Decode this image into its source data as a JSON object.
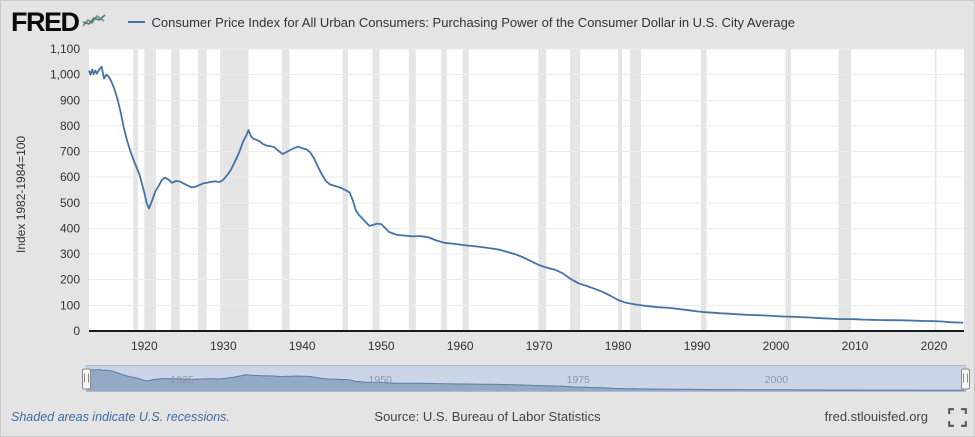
{
  "header": {
    "logo_text": "FRED"
  },
  "footer": {
    "recession_note": "Shaded areas indicate U.S. recessions.",
    "source": "Source: U.S. Bureau of Labor Statistics",
    "site": "fred.stlouisfed.org"
  },
  "chart_data": {
    "type": "line",
    "title": "Consumer Price Index for All Urban Consumers: Purchasing Power of the Consumer Dollar in U.S. City Average",
    "xlabel": "",
    "ylabel": "Index 1982-1984=100",
    "xlim": [
      1913,
      2023.8
    ],
    "ylim": [
      0,
      1100
    ],
    "grid": true,
    "legend_position": "top",
    "x_ticks": [
      1920,
      1930,
      1940,
      1950,
      1960,
      1970,
      1980,
      1990,
      2000,
      2010,
      2020
    ],
    "y_ticks": [
      {
        "v": 0,
        "label": "0"
      },
      {
        "v": 100,
        "label": "100"
      },
      {
        "v": 200,
        "label": "200"
      },
      {
        "v": 300,
        "label": "300"
      },
      {
        "v": 400,
        "label": "400"
      },
      {
        "v": 500,
        "label": "500"
      },
      {
        "v": 600,
        "label": "600"
      },
      {
        "v": 700,
        "label": "700"
      },
      {
        "v": 800,
        "label": "800"
      },
      {
        "v": 900,
        "label": "900"
      },
      {
        "v": 1000,
        "label": "1,000"
      },
      {
        "v": 1100,
        "label": "1,100"
      }
    ],
    "minimap_labels": [
      1925,
      1950,
      1975,
      2000
    ],
    "colors": {
      "line": "#4572a7",
      "grid": "#ececec",
      "recession_band": "#e5e5e5",
      "axis_line": "#1a1a1a",
      "minimap_bg": "#cad6e6",
      "minimap_fill": "#93a9c6",
      "minimap_stroke": "#5e7ca6",
      "footer_note_blue": "#3b6ea5"
    },
    "recessions": [
      [
        1918.6,
        1919.2
      ],
      [
        1920.0,
        1921.5
      ],
      [
        1923.4,
        1924.5
      ],
      [
        1926.8,
        1927.9
      ],
      [
        1929.6,
        1933.2
      ],
      [
        1937.4,
        1938.4
      ],
      [
        1945.1,
        1945.8
      ],
      [
        1948.9,
        1949.8
      ],
      [
        1953.5,
        1954.4
      ],
      [
        1957.6,
        1958.3
      ],
      [
        1960.3,
        1961.1
      ],
      [
        1969.9,
        1970.9
      ],
      [
        1973.9,
        1975.2
      ],
      [
        1980.0,
        1980.5
      ],
      [
        1981.5,
        1982.9
      ],
      [
        1990.5,
        1991.2
      ],
      [
        2001.2,
        2001.9
      ],
      [
        2007.9,
        2009.5
      ],
      [
        2020.1,
        2020.3
      ]
    ],
    "points": [
      [
        1913,
        1016
      ],
      [
        1913.2,
        1000
      ],
      [
        1913.4,
        1020
      ],
      [
        1913.6,
        1002
      ],
      [
        1913.8,
        1016
      ],
      [
        1914,
        1004
      ],
      [
        1914.3,
        1020
      ],
      [
        1914.6,
        1031
      ],
      [
        1914.9,
        985
      ],
      [
        1915.2,
        1000
      ],
      [
        1915.5,
        992
      ],
      [
        1915.8,
        975
      ],
      [
        1916.2,
        945
      ],
      [
        1916.6,
        905
      ],
      [
        1917,
        855
      ],
      [
        1917.4,
        795
      ],
      [
        1917.8,
        745
      ],
      [
        1918.2,
        705
      ],
      [
        1918.6,
        670
      ],
      [
        1919,
        640
      ],
      [
        1919.4,
        610
      ],
      [
        1919.7,
        575
      ],
      [
        1920,
        540
      ],
      [
        1920.3,
        500
      ],
      [
        1920.6,
        478
      ],
      [
        1921,
        510
      ],
      [
        1921.4,
        545
      ],
      [
        1921.8,
        565
      ],
      [
        1922.2,
        588
      ],
      [
        1922.6,
        598
      ],
      [
        1923,
        592
      ],
      [
        1923.5,
        578
      ],
      [
        1924,
        585
      ],
      [
        1924.5,
        583
      ],
      [
        1925,
        575
      ],
      [
        1925.5,
        567
      ],
      [
        1926,
        560
      ],
      [
        1926.5,
        563
      ],
      [
        1927,
        570
      ],
      [
        1927.5,
        576
      ],
      [
        1928,
        579
      ],
      [
        1928.5,
        582
      ],
      [
        1929,
        584
      ],
      [
        1929.5,
        581
      ],
      [
        1930,
        590
      ],
      [
        1930.5,
        608
      ],
      [
        1931,
        630
      ],
      [
        1931.5,
        662
      ],
      [
        1932,
        695
      ],
      [
        1932.5,
        738
      ],
      [
        1933,
        768
      ],
      [
        1933.2,
        784
      ],
      [
        1933.5,
        760
      ],
      [
        1933.8,
        750
      ],
      [
        1934.2,
        746
      ],
      [
        1934.6,
        740
      ],
      [
        1935,
        730
      ],
      [
        1935.5,
        723
      ],
      [
        1936,
        721
      ],
      [
        1936.5,
        716
      ],
      [
        1937,
        703
      ],
      [
        1937.5,
        690
      ],
      [
        1938,
        698
      ],
      [
        1938.5,
        706
      ],
      [
        1939,
        714
      ],
      [
        1939.5,
        719
      ],
      [
        1940,
        713
      ],
      [
        1940.5,
        709
      ],
      [
        1941,
        697
      ],
      [
        1941.5,
        673
      ],
      [
        1942,
        640
      ],
      [
        1942.5,
        610
      ],
      [
        1943,
        585
      ],
      [
        1943.5,
        572
      ],
      [
        1944,
        567
      ],
      [
        1944.5,
        563
      ],
      [
        1945,
        557
      ],
      [
        1945.5,
        549
      ],
      [
        1946,
        541
      ],
      [
        1946.4,
        510
      ],
      [
        1946.8,
        470
      ],
      [
        1947.2,
        452
      ],
      [
        1947.6,
        440
      ],
      [
        1948,
        426
      ],
      [
        1948.5,
        410
      ],
      [
        1949,
        414
      ],
      [
        1949.5,
        419
      ],
      [
        1950,
        417
      ],
      [
        1951,
        386
      ],
      [
        1952,
        375
      ],
      [
        1953,
        372
      ],
      [
        1954,
        369
      ],
      [
        1955,
        370
      ],
      [
        1956,
        365
      ],
      [
        1957,
        353
      ],
      [
        1958,
        344
      ],
      [
        1959,
        341
      ],
      [
        1960,
        337
      ],
      [
        1961,
        333
      ],
      [
        1962,
        330
      ],
      [
        1963,
        326
      ],
      [
        1964,
        322
      ],
      [
        1965,
        317
      ],
      [
        1966,
        308
      ],
      [
        1967,
        299
      ],
      [
        1968,
        287
      ],
      [
        1969,
        272
      ],
      [
        1970,
        257
      ],
      [
        1971,
        247
      ],
      [
        1972,
        239
      ],
      [
        1973,
        225
      ],
      [
        1974,
        203
      ],
      [
        1975,
        186
      ],
      [
        1976,
        176
      ],
      [
        1977,
        165
      ],
      [
        1978,
        153
      ],
      [
        1979,
        138
      ],
      [
        1980,
        121
      ],
      [
        1981,
        110
      ],
      [
        1982,
        104
      ],
      [
        1983,
        100
      ],
      [
        1984,
        96.3
      ],
      [
        1985,
        93
      ],
      [
        1986,
        91.3
      ],
      [
        1987,
        88
      ],
      [
        1988,
        84.6
      ],
      [
        1989,
        80.7
      ],
      [
        1990,
        76.5
      ],
      [
        1991,
        73.4
      ],
      [
        1992,
        71.3
      ],
      [
        1993,
        69.2
      ],
      [
        1994,
        67.5
      ],
      [
        1995,
        65.6
      ],
      [
        1996,
        63.7
      ],
      [
        1997,
        62.3
      ],
      [
        1998,
        61.3
      ],
      [
        1999,
        60
      ],
      [
        2000,
        58.1
      ],
      [
        2001,
        56.4
      ],
      [
        2002,
        55.6
      ],
      [
        2003,
        54.3
      ],
      [
        2004,
        52.9
      ],
      [
        2005,
        51.2
      ],
      [
        2006,
        49.6
      ],
      [
        2007,
        48.2
      ],
      [
        2008,
        46.4
      ],
      [
        2009,
        46.6
      ],
      [
        2010,
        45.9
      ],
      [
        2011,
        44.5
      ],
      [
        2012,
        43.6
      ],
      [
        2013,
        42.9
      ],
      [
        2014,
        42.3
      ],
      [
        2015,
        42.2
      ],
      [
        2016,
        41.7
      ],
      [
        2017,
        40.8
      ],
      [
        2018,
        39.9
      ],
      [
        2019,
        39.2
      ],
      [
        2020,
        38.7
      ],
      [
        2021,
        37.1
      ],
      [
        2022,
        34.3
      ],
      [
        2023,
        33
      ],
      [
        2023.7,
        32.7
      ]
    ]
  }
}
